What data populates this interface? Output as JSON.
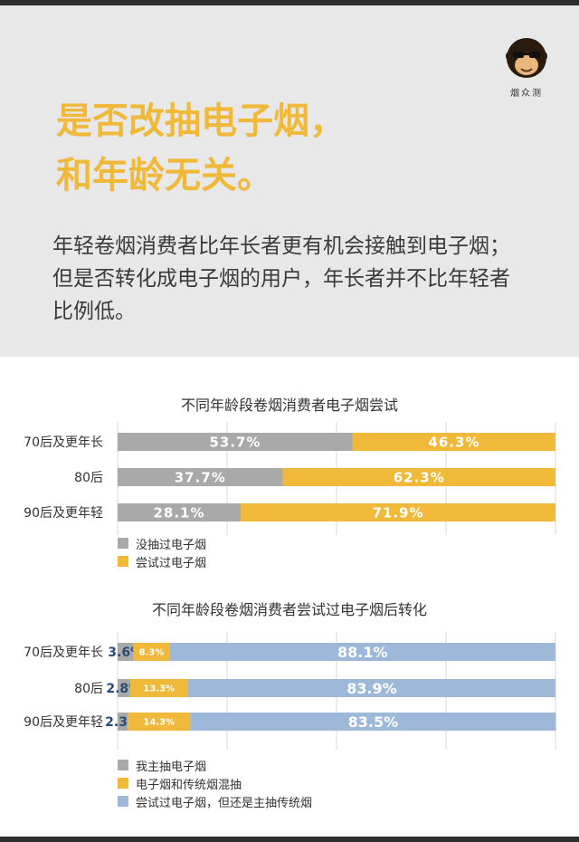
{
  "brand": {
    "logo_text": "烟众测"
  },
  "headline": {
    "line1": "是否改抽电子烟，",
    "line2": "和年龄无关。"
  },
  "description": {
    "line1": "年轻卷烟消费者比年长者更有机会接触到电子烟；",
    "line2": "但是否转化成电子烟的用户，年长者并不比年轻者",
    "line3": "比例低。"
  },
  "colors": {
    "gray": "#a9a9a9",
    "yellow": "#f0b93a",
    "blue": "#9db8d8",
    "accent": "#f0b93a"
  },
  "chart_data": [
    {
      "type": "bar",
      "orientation": "horizontal",
      "stacked": true,
      "title": "不同年龄段卷烟消费者电子烟尝试",
      "categories": [
        "70后及更年长",
        "80后",
        "90后及更年轻"
      ],
      "series": [
        {
          "name": "没抽过电子烟",
          "values": [
            53.7,
            37.7,
            28.1
          ],
          "labels": [
            "53.7%",
            "37.7%",
            "28.1%"
          ]
        },
        {
          "name": "尝试过电子烟",
          "values": [
            46.3,
            62.3,
            71.9
          ],
          "labels": [
            "46.3%",
            "62.3%",
            "71.9%"
          ]
        }
      ],
      "xlim": [
        0,
        100
      ],
      "grid": true,
      "legend": "bottom-left"
    },
    {
      "type": "bar",
      "orientation": "horizontal",
      "stacked": true,
      "title": "不同年龄段卷烟消费者尝试过电子烟后转化",
      "categories": [
        "70后及更年长",
        "80后",
        "90后及更年轻"
      ],
      "series": [
        {
          "name": "我主抽电子烟",
          "values": [
            3.6,
            2.8,
            2.3
          ],
          "labels": [
            "3.6%",
            "2.8%",
            "2.3%"
          ]
        },
        {
          "name": "电子烟和传统烟混抽",
          "values": [
            8.3,
            13.3,
            14.3
          ],
          "labels": [
            "8.3%",
            "13.3%",
            "14.3%"
          ]
        },
        {
          "name": "尝试过电子烟，但还是主抽传统烟",
          "values": [
            88.1,
            83.9,
            83.5
          ],
          "labels": [
            "88.1%",
            "83.9%",
            "83.5%"
          ]
        }
      ],
      "xlim": [
        0,
        100
      ],
      "grid": true,
      "legend": "bottom-left"
    }
  ]
}
